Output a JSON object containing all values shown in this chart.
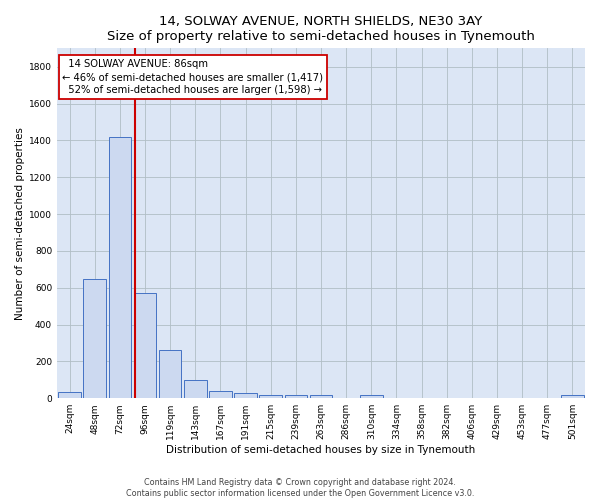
{
  "title1": "14, SOLWAY AVENUE, NORTH SHIELDS, NE30 3AY",
  "title2": "Size of property relative to semi-detached houses in Tynemouth",
  "xlabel": "Distribution of semi-detached houses by size in Tynemouth",
  "ylabel": "Number of semi-detached properties",
  "footer1": "Contains HM Land Registry data © Crown copyright and database right 2024.",
  "footer2": "Contains public sector information licensed under the Open Government Licence v3.0.",
  "bar_labels": [
    "24sqm",
    "48sqm",
    "72sqm",
    "96sqm",
    "119sqm",
    "143sqm",
    "167sqm",
    "191sqm",
    "215sqm",
    "239sqm",
    "263sqm",
    "286sqm",
    "310sqm",
    "334sqm",
    "358sqm",
    "382sqm",
    "406sqm",
    "429sqm",
    "453sqm",
    "477sqm",
    "501sqm"
  ],
  "bar_values": [
    35,
    650,
    1417,
    570,
    260,
    100,
    40,
    30,
    20,
    15,
    15,
    0,
    15,
    0,
    0,
    0,
    0,
    0,
    0,
    0,
    15
  ],
  "bar_color": "#ccd9f0",
  "bar_edge_color": "#4472c4",
  "property_label": "14 SOLWAY AVENUE: 86sqm",
  "pct_smaller": 46,
  "n_smaller": 1417,
  "pct_larger": 52,
  "n_larger": 1598,
  "vline_color": "#cc0000",
  "annotation_box_color": "#ffffff",
  "annotation_box_edge": "#cc0000",
  "ylim": [
    0,
    1900
  ],
  "yticks": [
    0,
    200,
    400,
    600,
    800,
    1000,
    1200,
    1400,
    1600,
    1800
  ],
  "background_color": "#ffffff",
  "plot_bg_color": "#dce6f5",
  "grid_color": "#b0bec5",
  "title1_fontsize": 9.5,
  "title2_fontsize": 8.5,
  "axis_label_fontsize": 7.5,
  "tick_fontsize": 6.5,
  "annotation_fontsize": 7.2,
  "footer_fontsize": 5.8
}
